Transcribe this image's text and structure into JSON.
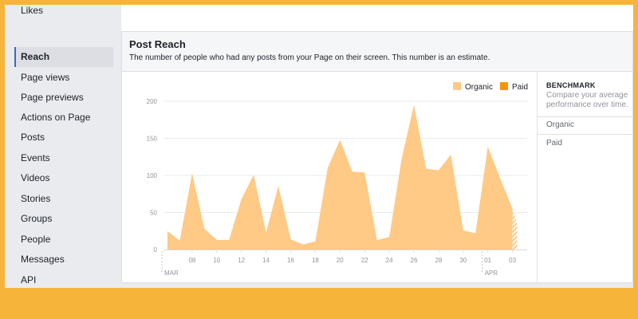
{
  "sidebar": {
    "items": [
      {
        "label": "Likes",
        "active": false
      },
      {
        "label": "Reach",
        "active": true
      },
      {
        "label": "Page views",
        "active": false
      },
      {
        "label": "Page previews",
        "active": false
      },
      {
        "label": "Actions on Page",
        "active": false
      },
      {
        "label": "Posts",
        "active": false
      },
      {
        "label": "Events",
        "active": false
      },
      {
        "label": "Videos",
        "active": false
      },
      {
        "label": "Stories",
        "active": false
      },
      {
        "label": "Groups",
        "active": false
      },
      {
        "label": "People",
        "active": false
      },
      {
        "label": "Messages",
        "active": false
      },
      {
        "label": "API",
        "active": false
      }
    ]
  },
  "panel": {
    "title": "Post Reach",
    "subtitle": "The number of people who had any posts from your Page on their screen. This number is an estimate."
  },
  "benchmark": {
    "title": "BENCHMARK",
    "description": "Compare your average performance over time.",
    "rows": [
      "Organic",
      "Paid"
    ]
  },
  "colors": {
    "organic": "#ffc986",
    "paid": "#f5950e",
    "accent": "#4267b2"
  },
  "chart_data": {
    "type": "area",
    "legend": [
      "Organic",
      "Paid"
    ],
    "legend_position": "top-right",
    "ylim": [
      0,
      200
    ],
    "yticks": [
      0,
      50,
      100,
      150,
      200
    ],
    "xticks": [
      "08",
      "10",
      "12",
      "14",
      "16",
      "18",
      "20",
      "22",
      "24",
      "26",
      "28",
      "30",
      "01",
      "03"
    ],
    "month_labels": [
      "MAR",
      "APR"
    ],
    "grid": true,
    "x": [
      "Mar 06",
      "Mar 07",
      "Mar 08",
      "Mar 09",
      "Mar 10",
      "Mar 11",
      "Mar 12",
      "Mar 13",
      "Mar 14",
      "Mar 15",
      "Mar 16",
      "Mar 17",
      "Mar 18",
      "Mar 19",
      "Mar 20",
      "Mar 21",
      "Mar 22",
      "Mar 23",
      "Mar 24",
      "Mar 25",
      "Mar 26",
      "Mar 27",
      "Mar 28",
      "Mar 29",
      "Mar 30",
      "Mar 31",
      "Apr 01",
      "Apr 02",
      "Apr 03"
    ],
    "series": [
      {
        "name": "Organic",
        "values": [
          25,
          12,
          103,
          28,
          13,
          13,
          68,
          101,
          23,
          86,
          14,
          7,
          11,
          110,
          148,
          105,
          104,
          13,
          17,
          122,
          195,
          109,
          107,
          128,
          26,
          22,
          139,
          96,
          55
        ]
      },
      {
        "name": "Paid",
        "values": [
          0,
          0,
          0,
          0,
          0,
          0,
          0,
          0,
          0,
          0,
          0,
          0,
          0,
          0,
          0,
          0,
          0,
          0,
          0,
          0,
          0,
          0,
          0,
          0,
          0,
          0,
          0,
          0,
          0
        ]
      }
    ]
  }
}
